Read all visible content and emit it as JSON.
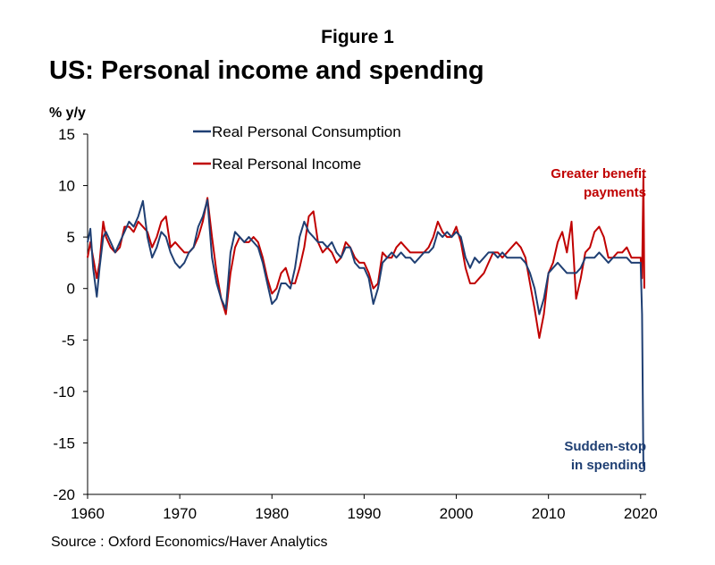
{
  "figure_label": "Figure 1",
  "source": "Source : Oxford Economics/Haver Analytics",
  "colors": {
    "consumption": "#1f3f73",
    "income": "#c00000",
    "axis": "#000000"
  },
  "chart_data": {
    "type": "line",
    "title": "US: Personal income and spending",
    "ylabel": "% y/y",
    "xlabel": "",
    "xlim": [
      1960,
      2020.6
    ],
    "ylim": [
      -20,
      15
    ],
    "x_ticks": [
      1960,
      1970,
      1980,
      1990,
      2000,
      2010,
      2020
    ],
    "y_ticks": [
      15,
      10,
      5,
      0,
      -5,
      -10,
      -15,
      -20
    ],
    "grid": false,
    "legend_position": "top-center",
    "series": [
      {
        "name": "Real Personal Consumption",
        "color": "#1f3f73",
        "x": [
          1960.0,
          1960.3,
          1960.6,
          1961.0,
          1961.3,
          1961.7,
          1962.0,
          1962.5,
          1963.0,
          1963.5,
          1964.0,
          1964.5,
          1965.0,
          1965.5,
          1966.0,
          1966.5,
          1967.0,
          1967.5,
          1968.0,
          1968.5,
          1969.0,
          1969.5,
          1970.0,
          1970.5,
          1971.0,
          1971.5,
          1972.0,
          1972.5,
          1973.0,
          1973.5,
          1974.0,
          1974.5,
          1975.0,
          1975.5,
          1976.0,
          1976.5,
          1977.0,
          1977.5,
          1978.0,
          1978.5,
          1979.0,
          1979.5,
          1980.0,
          1980.5,
          1981.0,
          1981.5,
          1982.0,
          1982.5,
          1983.0,
          1983.5,
          1984.0,
          1984.5,
          1985.0,
          1985.5,
          1986.0,
          1986.5,
          1987.0,
          1987.5,
          1988.0,
          1988.5,
          1989.0,
          1989.5,
          1990.0,
          1990.5,
          1991.0,
          1991.5,
          1992.0,
          1992.5,
          1993.0,
          1993.5,
          1994.0,
          1994.5,
          1995.0,
          1995.5,
          1996.0,
          1996.5,
          1997.0,
          1997.5,
          1998.0,
          1998.5,
          1999.0,
          1999.5,
          2000.0,
          2000.5,
          2001.0,
          2001.5,
          2002.0,
          2002.5,
          2003.0,
          2003.5,
          2004.0,
          2004.5,
          2005.0,
          2005.5,
          2006.0,
          2006.5,
          2007.0,
          2007.5,
          2008.0,
          2008.5,
          2009.0,
          2009.5,
          2010.0,
          2010.5,
          2011.0,
          2011.5,
          2012.0,
          2012.5,
          2013.0,
          2013.5,
          2014.0,
          2014.5,
          2015.0,
          2015.5,
          2016.0,
          2016.5,
          2017.0,
          2017.5,
          2018.0,
          2018.5,
          2019.0,
          2019.5,
          2020.0,
          2020.15,
          2020.3
        ],
        "values": [
          4.5,
          5.8,
          2.0,
          -0.8,
          2.0,
          5.0,
          5.5,
          4.5,
          3.5,
          4.5,
          5.5,
          6.5,
          6.0,
          7.0,
          8.5,
          5.0,
          3.0,
          4.0,
          5.5,
          5.0,
          3.5,
          2.5,
          2.0,
          2.5,
          3.5,
          4.0,
          6.0,
          7.0,
          8.6,
          3.0,
          0.5,
          -1.0,
          -2.0,
          3.5,
          5.5,
          5.0,
          4.5,
          5.0,
          4.5,
          4.0,
          2.5,
          0.5,
          -1.5,
          -1.0,
          0.5,
          0.5,
          0.0,
          2.0,
          5.0,
          6.5,
          5.5,
          5.0,
          4.5,
          4.5,
          4.0,
          4.5,
          3.5,
          3.0,
          4.0,
          4.0,
          2.5,
          2.0,
          2.0,
          1.0,
          -1.5,
          0.0,
          2.5,
          3.0,
          3.5,
          3.0,
          3.5,
          3.0,
          3.0,
          2.5,
          3.0,
          3.5,
          3.5,
          4.0,
          5.5,
          5.0,
          5.5,
          5.0,
          5.5,
          5.0,
          3.0,
          2.0,
          3.0,
          2.5,
          3.0,
          3.5,
          3.5,
          3.0,
          3.5,
          3.0,
          3.0,
          3.0,
          3.0,
          2.5,
          1.5,
          0.0,
          -2.5,
          -1.0,
          1.5,
          2.0,
          2.5,
          2.0,
          1.5,
          1.5,
          1.5,
          2.0,
          3.0,
          3.0,
          3.0,
          3.5,
          3.0,
          2.5,
          3.0,
          3.0,
          3.0,
          3.0,
          2.5,
          2.5,
          2.5,
          -2.5,
          -17.3
        ]
      },
      {
        "name": "Real Personal Income",
        "color": "#c00000",
        "x": [
          1960.0,
          1960.3,
          1960.6,
          1961.0,
          1961.3,
          1961.7,
          1962.0,
          1962.5,
          1963.0,
          1963.5,
          1964.0,
          1964.5,
          1965.0,
          1965.5,
          1966.0,
          1966.5,
          1967.0,
          1967.5,
          1968.0,
          1968.5,
          1969.0,
          1969.5,
          1970.0,
          1970.5,
          1971.0,
          1971.5,
          1972.0,
          1972.5,
          1973.0,
          1973.5,
          1974.0,
          1974.5,
          1975.0,
          1975.5,
          1976.0,
          1976.5,
          1977.0,
          1977.5,
          1978.0,
          1978.5,
          1979.0,
          1979.5,
          1980.0,
          1980.5,
          1981.0,
          1981.5,
          1982.0,
          1982.5,
          1983.0,
          1983.5,
          1984.0,
          1984.5,
          1985.0,
          1985.5,
          1986.0,
          1986.5,
          1987.0,
          1987.5,
          1988.0,
          1988.5,
          1989.0,
          1989.5,
          1990.0,
          1990.5,
          1991.0,
          1991.5,
          1992.0,
          1992.5,
          1993.0,
          1993.5,
          1994.0,
          1994.5,
          1995.0,
          1995.5,
          1996.0,
          1996.5,
          1997.0,
          1997.5,
          1998.0,
          1998.5,
          1999.0,
          1999.5,
          2000.0,
          2000.5,
          2001.0,
          2001.5,
          2002.0,
          2002.5,
          2003.0,
          2003.5,
          2004.0,
          2004.5,
          2005.0,
          2005.5,
          2006.0,
          2006.5,
          2007.0,
          2007.5,
          2008.0,
          2008.5,
          2009.0,
          2009.5,
          2010.0,
          2010.5,
          2011.0,
          2011.5,
          2012.0,
          2012.5,
          2013.0,
          2013.5,
          2014.0,
          2014.5,
          2015.0,
          2015.5,
          2016.0,
          2016.5,
          2017.0,
          2017.5,
          2018.0,
          2018.5,
          2019.0,
          2019.5,
          2020.0,
          2020.15,
          2020.3,
          2020.4
        ],
        "values": [
          3.0,
          4.5,
          3.0,
          1.0,
          2.5,
          6.5,
          5.0,
          4.0,
          3.5,
          4.0,
          6.0,
          6.0,
          5.5,
          6.5,
          6.0,
          5.5,
          4.0,
          5.0,
          6.5,
          7.0,
          4.0,
          4.5,
          4.0,
          3.5,
          3.5,
          4.0,
          5.0,
          6.5,
          8.8,
          5.0,
          1.5,
          -1.0,
          -2.5,
          1.5,
          4.0,
          5.0,
          4.5,
          4.5,
          5.0,
          4.5,
          3.0,
          1.0,
          -0.5,
          0.0,
          1.5,
          2.0,
          0.5,
          0.5,
          2.0,
          4.0,
          7.0,
          7.5,
          4.5,
          3.5,
          4.0,
          3.5,
          2.5,
          3.0,
          4.5,
          4.0,
          3.0,
          2.5,
          2.5,
          1.5,
          0.0,
          0.5,
          3.5,
          3.0,
          3.0,
          4.0,
          4.5,
          4.0,
          3.5,
          3.5,
          3.5,
          3.5,
          4.0,
          5.0,
          6.5,
          5.5,
          5.0,
          5.0,
          6.0,
          4.5,
          2.0,
          0.5,
          0.5,
          1.0,
          1.5,
          2.5,
          3.5,
          3.5,
          3.0,
          3.5,
          4.0,
          4.5,
          4.0,
          3.0,
          0.5,
          -2.0,
          -4.8,
          -2.5,
          1.5,
          2.5,
          4.5,
          5.5,
          3.5,
          6.5,
          -1.0,
          1.0,
          3.5,
          4.0,
          5.5,
          6.0,
          5.0,
          3.0,
          3.0,
          3.5,
          3.5,
          4.0,
          3.0,
          3.0,
          3.0,
          1.0,
          11.0,
          0.0
        ]
      }
    ],
    "annotations": [
      {
        "text_line1": "Greater benefit",
        "text_line2": "payments",
        "color": "#c00000"
      },
      {
        "text_line1": "Sudden-stop",
        "text_line2": "in spending",
        "color": "#1f3f73"
      }
    ]
  }
}
